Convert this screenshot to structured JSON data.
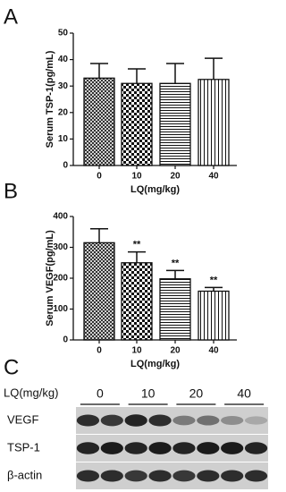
{
  "chart_data": [
    {
      "type": "bar",
      "panel": "A",
      "y_label": "Serum TSP-1(pg/mL)",
      "x_label": "LQ(mg/kg)",
      "categories": [
        "0",
        "10",
        "20",
        "40"
      ],
      "values": [
        33,
        31,
        31,
        32.5
      ],
      "errors": [
        5.5,
        5.5,
        7.5,
        8
      ],
      "ylim": [
        0,
        50
      ],
      "yticks": [
        0,
        10,
        20,
        30,
        40,
        50
      ],
      "color": "#111111"
    },
    {
      "type": "bar",
      "panel": "B",
      "y_label": "Serum VEGF(pg/mL)",
      "x_label": "LQ(mg/kg)",
      "categories": [
        "0",
        "10",
        "20",
        "40"
      ],
      "values": [
        315,
        250,
        198,
        158
      ],
      "errors": [
        45,
        35,
        27,
        12
      ],
      "annotations": [
        null,
        "**",
        "**",
        "**"
      ],
      "ylim": [
        0,
        400
      ],
      "yticks": [
        0,
        100,
        200,
        300,
        400
      ],
      "color": "#111111"
    }
  ],
  "blot": {
    "panel": "C",
    "dose_label": "LQ(mg/kg)",
    "doses": [
      "0",
      "10",
      "20",
      "40"
    ],
    "bands": [
      "VEGF",
      "TSP-1",
      "β-actin"
    ]
  }
}
